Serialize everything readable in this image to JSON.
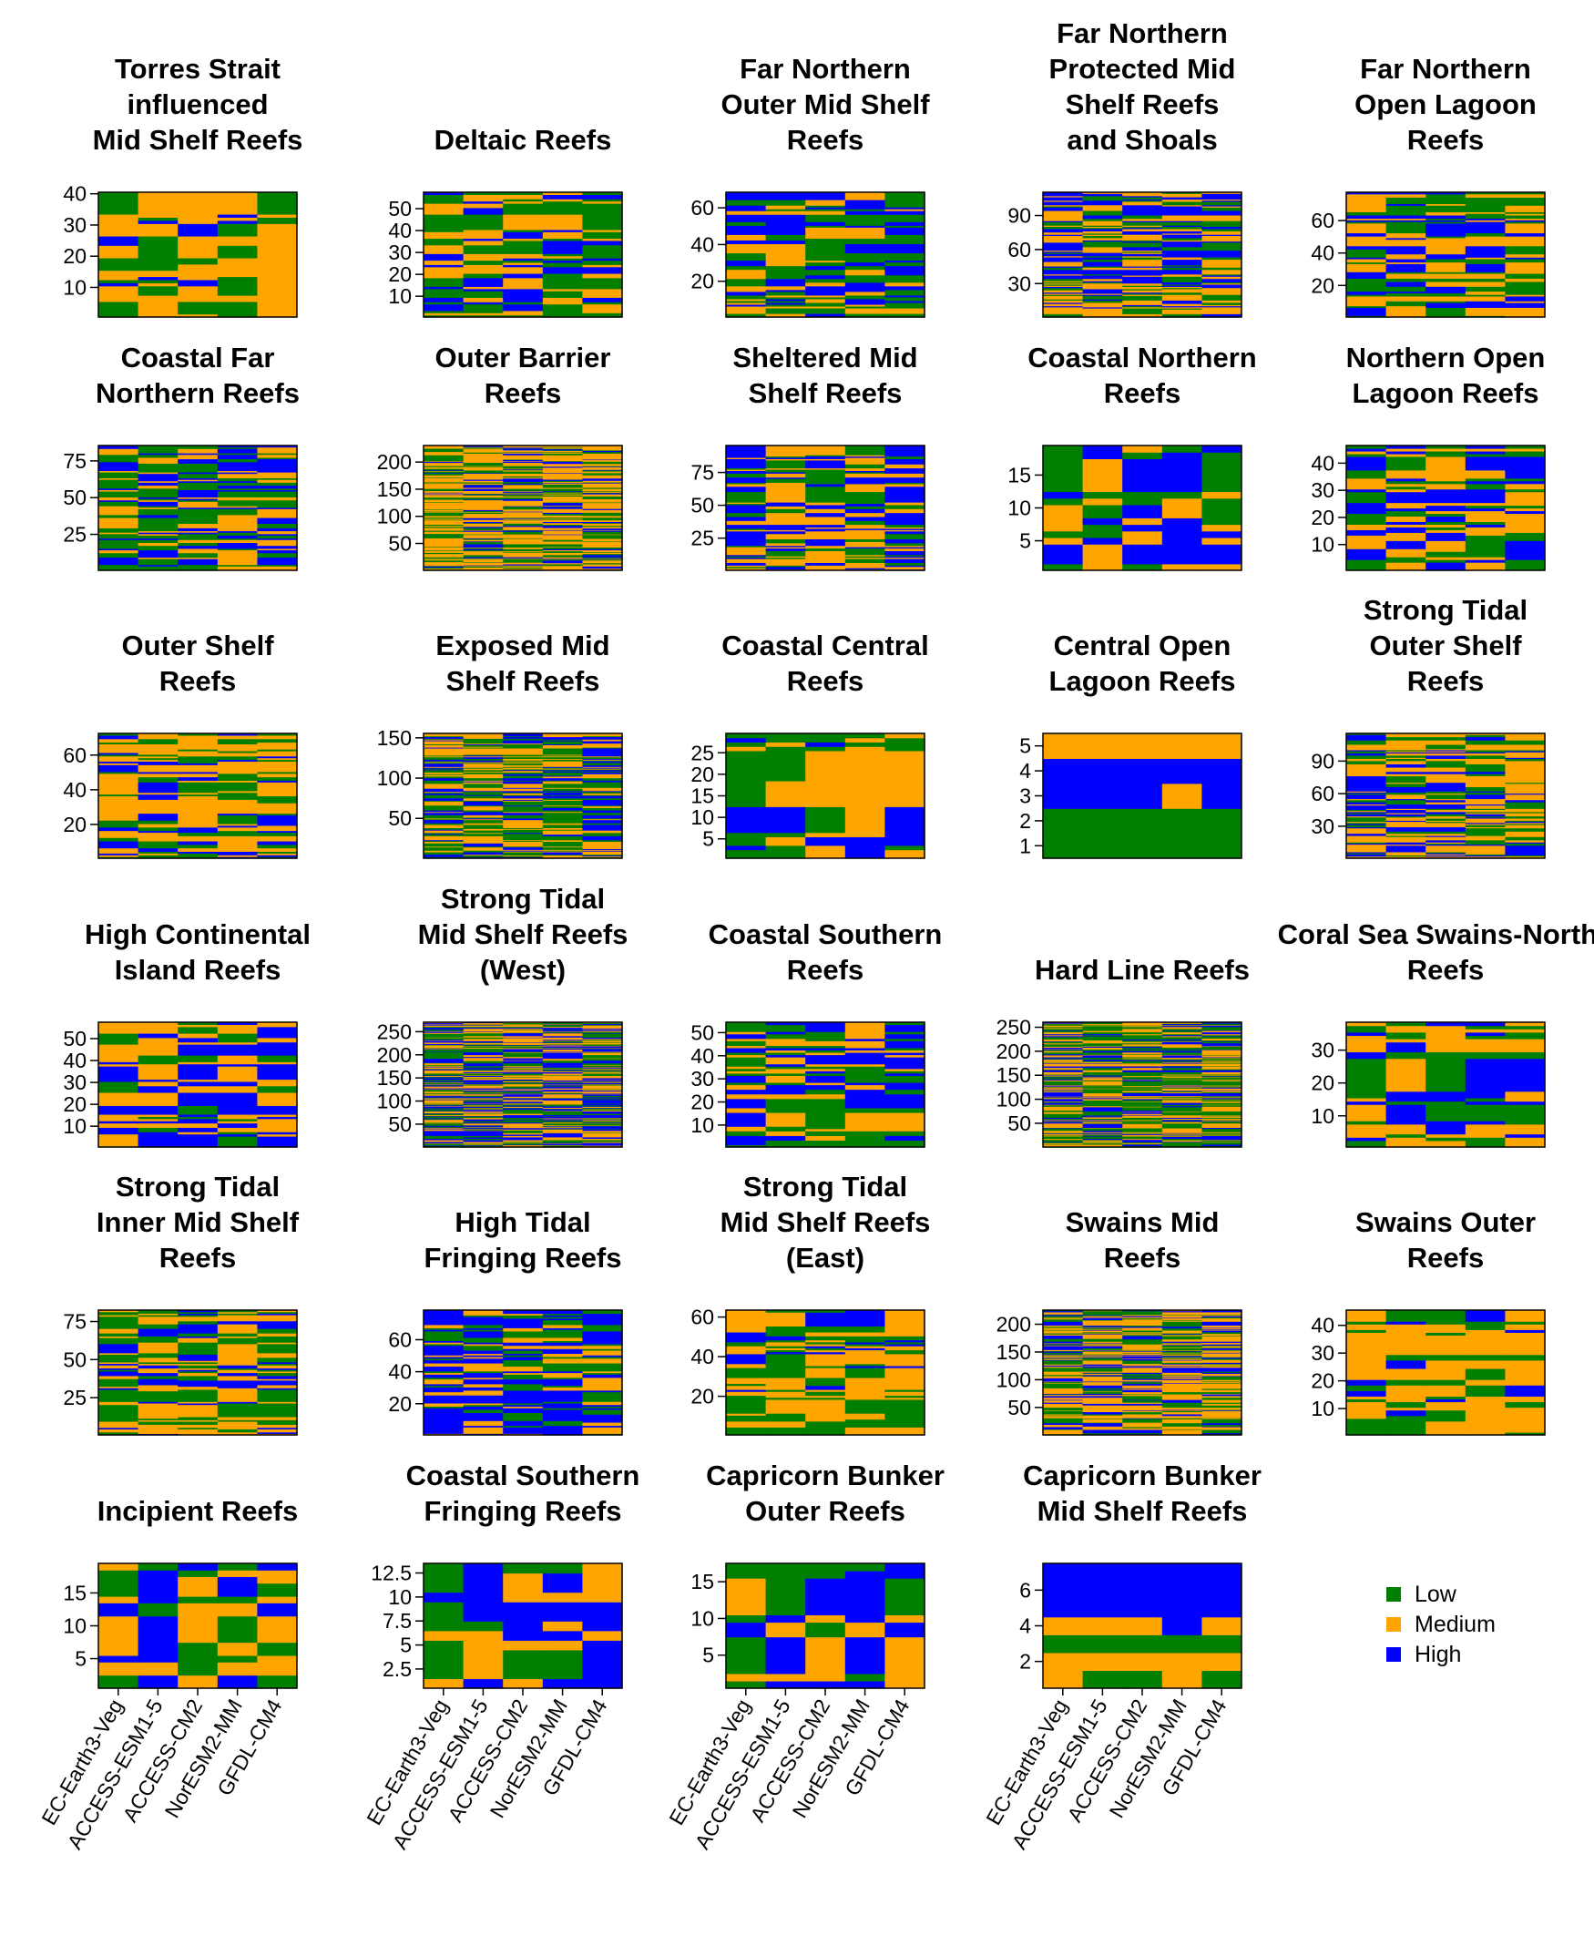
{
  "colors": {
    "low": "#007f00",
    "medium": "#ffa500",
    "high": "#0000ff"
  },
  "legend": [
    {
      "label": "Low",
      "color": "#007f00"
    },
    {
      "label": "Medium",
      "color": "#ffa500"
    },
    {
      "label": "High",
      "color": "#0000ff"
    }
  ],
  "models": [
    "EC-Earth3-Veg",
    "ACCESS-ESM1-5",
    "ACCESS-CM2",
    "NorESM2-MM",
    "GFDL-CM4"
  ],
  "chart_data": [
    {
      "type": "heatmap",
      "title": [
        "Torres Strait",
        "influenced",
        "Mid Shelf Reefs"
      ],
      "n_reefs": 40,
      "yticks": [
        10,
        20,
        30,
        40
      ],
      "seed": 11,
      "bias": [
        0.25,
        0.55,
        0.2
      ]
    },
    {
      "type": "heatmap",
      "title": [
        "Deltaic Reefs"
      ],
      "n_reefs": 57,
      "yticks": [
        10,
        20,
        30,
        40,
        50
      ],
      "seed": 12,
      "bias": [
        0.4,
        0.35,
        0.25
      ]
    },
    {
      "type": "heatmap",
      "title": [
        "Far Northern",
        "Outer Mid Shelf",
        "Reefs"
      ],
      "n_reefs": 68,
      "yticks": [
        20,
        40,
        60
      ],
      "seed": 13,
      "bias": [
        0.45,
        0.25,
        0.3
      ]
    },
    {
      "type": "heatmap",
      "title": [
        "Far Northern",
        "Protected Mid",
        "Shelf Reefs",
        "and Shoals"
      ],
      "n_reefs": 110,
      "yticks": [
        30,
        60,
        90
      ],
      "seed": 14,
      "bias": [
        0.25,
        0.4,
        0.35
      ]
    },
    {
      "type": "heatmap",
      "title": [
        "Far Northern",
        "Open Lagoon",
        "Reefs"
      ],
      "n_reefs": 77,
      "yticks": [
        20,
        40,
        60
      ],
      "seed": 15,
      "bias": [
        0.35,
        0.4,
        0.25
      ]
    },
    {
      "type": "heatmap",
      "title": [
        "Coastal Far",
        "Northern Reefs"
      ],
      "n_reefs": 85,
      "yticks": [
        25,
        50,
        75
      ],
      "seed": 21,
      "bias": [
        0.35,
        0.3,
        0.35
      ]
    },
    {
      "type": "heatmap",
      "title": [
        "Outer Barrier",
        "Reefs"
      ],
      "n_reefs": 230,
      "yticks": [
        50,
        100,
        150,
        200
      ],
      "seed": 22,
      "bias": [
        0.3,
        0.55,
        0.15
      ]
    },
    {
      "type": "heatmap",
      "title": [
        "Sheltered Mid",
        "Shelf Reefs"
      ],
      "n_reefs": 95,
      "yticks": [
        25,
        50,
        75
      ],
      "seed": 23,
      "bias": [
        0.2,
        0.45,
        0.35
      ]
    },
    {
      "type": "heatmap",
      "title": [
        "Coastal Northern",
        "Reefs"
      ],
      "n_reefs": 19,
      "yticks": [
        5,
        10,
        15
      ],
      "seed": 24,
      "bias": [
        0.35,
        0.3,
        0.35
      ]
    },
    {
      "type": "heatmap",
      "title": [
        "Northern Open",
        "Lagoon Reefs"
      ],
      "n_reefs": 46,
      "yticks": [
        10,
        20,
        30,
        40
      ],
      "seed": 25,
      "bias": [
        0.3,
        0.4,
        0.3
      ]
    },
    {
      "type": "heatmap",
      "title": [
        "Outer Shelf",
        "Reefs"
      ],
      "n_reefs": 72,
      "yticks": [
        20,
        40,
        60
      ],
      "seed": 31,
      "bias": [
        0.3,
        0.5,
        0.2
      ]
    },
    {
      "type": "heatmap",
      "title": [
        "Exposed Mid",
        "Shelf Reefs"
      ],
      "n_reefs": 155,
      "yticks": [
        50,
        100,
        150
      ],
      "seed": 32,
      "bias": [
        0.4,
        0.35,
        0.25
      ]
    },
    {
      "type": "heatmap",
      "title": [
        "Coastal Central",
        "Reefs"
      ],
      "n_reefs": 29,
      "yticks": [
        5,
        10,
        15,
        20,
        25
      ],
      "seed": 33,
      "bias": [
        0.35,
        0.35,
        0.3
      ]
    },
    {
      "type": "heatmap",
      "title": [
        "Central Open",
        "Lagoon Reefs"
      ],
      "n_reefs": 5,
      "yticks": [
        1,
        2,
        3,
        4,
        5
      ],
      "rows": [
        [
          0,
          0,
          0,
          0,
          0
        ],
        [
          0,
          0,
          0,
          0,
          0
        ],
        [
          2,
          2,
          2,
          1,
          2
        ],
        [
          2,
          2,
          2,
          2,
          2
        ],
        [
          1,
          1,
          1,
          1,
          1
        ]
      ]
    },
    {
      "type": "heatmap",
      "title": [
        "Strong Tidal",
        "Outer Shelf",
        "Reefs"
      ],
      "n_reefs": 115,
      "yticks": [
        30,
        60,
        90
      ],
      "seed": 35,
      "bias": [
        0.3,
        0.45,
        0.25
      ]
    },
    {
      "type": "heatmap",
      "title": [
        "High Continental",
        "Island Reefs"
      ],
      "n_reefs": 57,
      "yticks": [
        10,
        20,
        30,
        40,
        50
      ],
      "seed": 41,
      "bias": [
        0.2,
        0.45,
        0.35
      ]
    },
    {
      "type": "heatmap",
      "title": [
        "Strong Tidal",
        "Mid Shelf Reefs",
        "(West)"
      ],
      "n_reefs": 270,
      "yticks": [
        50,
        100,
        150,
        200,
        250
      ],
      "seed": 42,
      "bias": [
        0.3,
        0.35,
        0.35
      ]
    },
    {
      "type": "heatmap",
      "title": [
        "Coastal Southern",
        "Reefs"
      ],
      "n_reefs": 54,
      "yticks": [
        10,
        20,
        30,
        40,
        50
      ],
      "seed": 43,
      "bias": [
        0.4,
        0.35,
        0.25
      ]
    },
    {
      "type": "heatmap",
      "title": [
        "Hard Line Reefs"
      ],
      "n_reefs": 260,
      "yticks": [
        50,
        100,
        150,
        200,
        250
      ],
      "seed": 44,
      "bias": [
        0.45,
        0.35,
        0.2
      ]
    },
    {
      "type": "heatmap",
      "title": [
        "Coral Sea Swains-Northe",
        "Reefs"
      ],
      "n_reefs": 38,
      "yticks": [
        10,
        20,
        30
      ],
      "seed": 45,
      "bias": [
        0.35,
        0.4,
        0.25
      ]
    },
    {
      "type": "heatmap",
      "title": [
        "Strong Tidal",
        "Inner Mid Shelf",
        "Reefs"
      ],
      "n_reefs": 82,
      "yticks": [
        25,
        50,
        75
      ],
      "seed": 51,
      "bias": [
        0.35,
        0.45,
        0.2
      ]
    },
    {
      "type": "heatmap",
      "title": [
        "High Tidal",
        "Fringing Reefs"
      ],
      "n_reefs": 78,
      "yticks": [
        20,
        40,
        60
      ],
      "seed": 52,
      "bias": [
        0.2,
        0.25,
        0.55
      ]
    },
    {
      "type": "heatmap",
      "title": [
        "Strong Tidal",
        "Mid Shelf Reefs",
        "(East)"
      ],
      "n_reefs": 63,
      "yticks": [
        20,
        40,
        60
      ],
      "seed": 53,
      "bias": [
        0.4,
        0.45,
        0.15
      ]
    },
    {
      "type": "heatmap",
      "title": [
        "Swains Mid",
        "Reefs"
      ],
      "n_reefs": 225,
      "yticks": [
        50,
        100,
        150,
        200
      ],
      "seed": 54,
      "bias": [
        0.35,
        0.45,
        0.2
      ]
    },
    {
      "type": "heatmap",
      "title": [
        "Swains Outer",
        "Reefs"
      ],
      "n_reefs": 45,
      "yticks": [
        10,
        20,
        30,
        40
      ],
      "seed": 55,
      "bias": [
        0.3,
        0.55,
        0.15
      ]
    },
    {
      "type": "heatmap",
      "title": [
        "Incipient Reefs"
      ],
      "n_reefs": 19,
      "yticks": [
        5,
        10,
        15
      ],
      "seed": 61,
      "bias": [
        0.4,
        0.4,
        0.2
      ]
    },
    {
      "type": "heatmap",
      "title": [
        "Coastal Southern",
        "Fringing Reefs"
      ],
      "n_reefs": 13,
      "yticks": [
        2.5,
        5.0,
        7.5,
        10.0,
        12.5
      ],
      "seed": 62,
      "bias": [
        0.2,
        0.35,
        0.45
      ]
    },
    {
      "type": "heatmap",
      "title": [
        "Capricorn Bunker",
        "Outer Reefs"
      ],
      "n_reefs": 17,
      "yticks": [
        5,
        10,
        15
      ],
      "seed": 63,
      "bias": [
        0.35,
        0.3,
        0.35
      ]
    },
    {
      "type": "heatmap",
      "title": [
        "Capricorn Bunker",
        "Mid Shelf Reefs"
      ],
      "n_reefs": 7,
      "yticks": [
        2,
        4,
        6
      ],
      "rows": [
        [
          1,
          0,
          0,
          1,
          0
        ],
        [
          1,
          1,
          1,
          1,
          1
        ],
        [
          0,
          0,
          0,
          0,
          0
        ],
        [
          1,
          1,
          1,
          2,
          1
        ],
        [
          2,
          2,
          2,
          2,
          2
        ],
        [
          2,
          2,
          2,
          2,
          2
        ],
        [
          2,
          2,
          2,
          2,
          2
        ]
      ]
    }
  ]
}
